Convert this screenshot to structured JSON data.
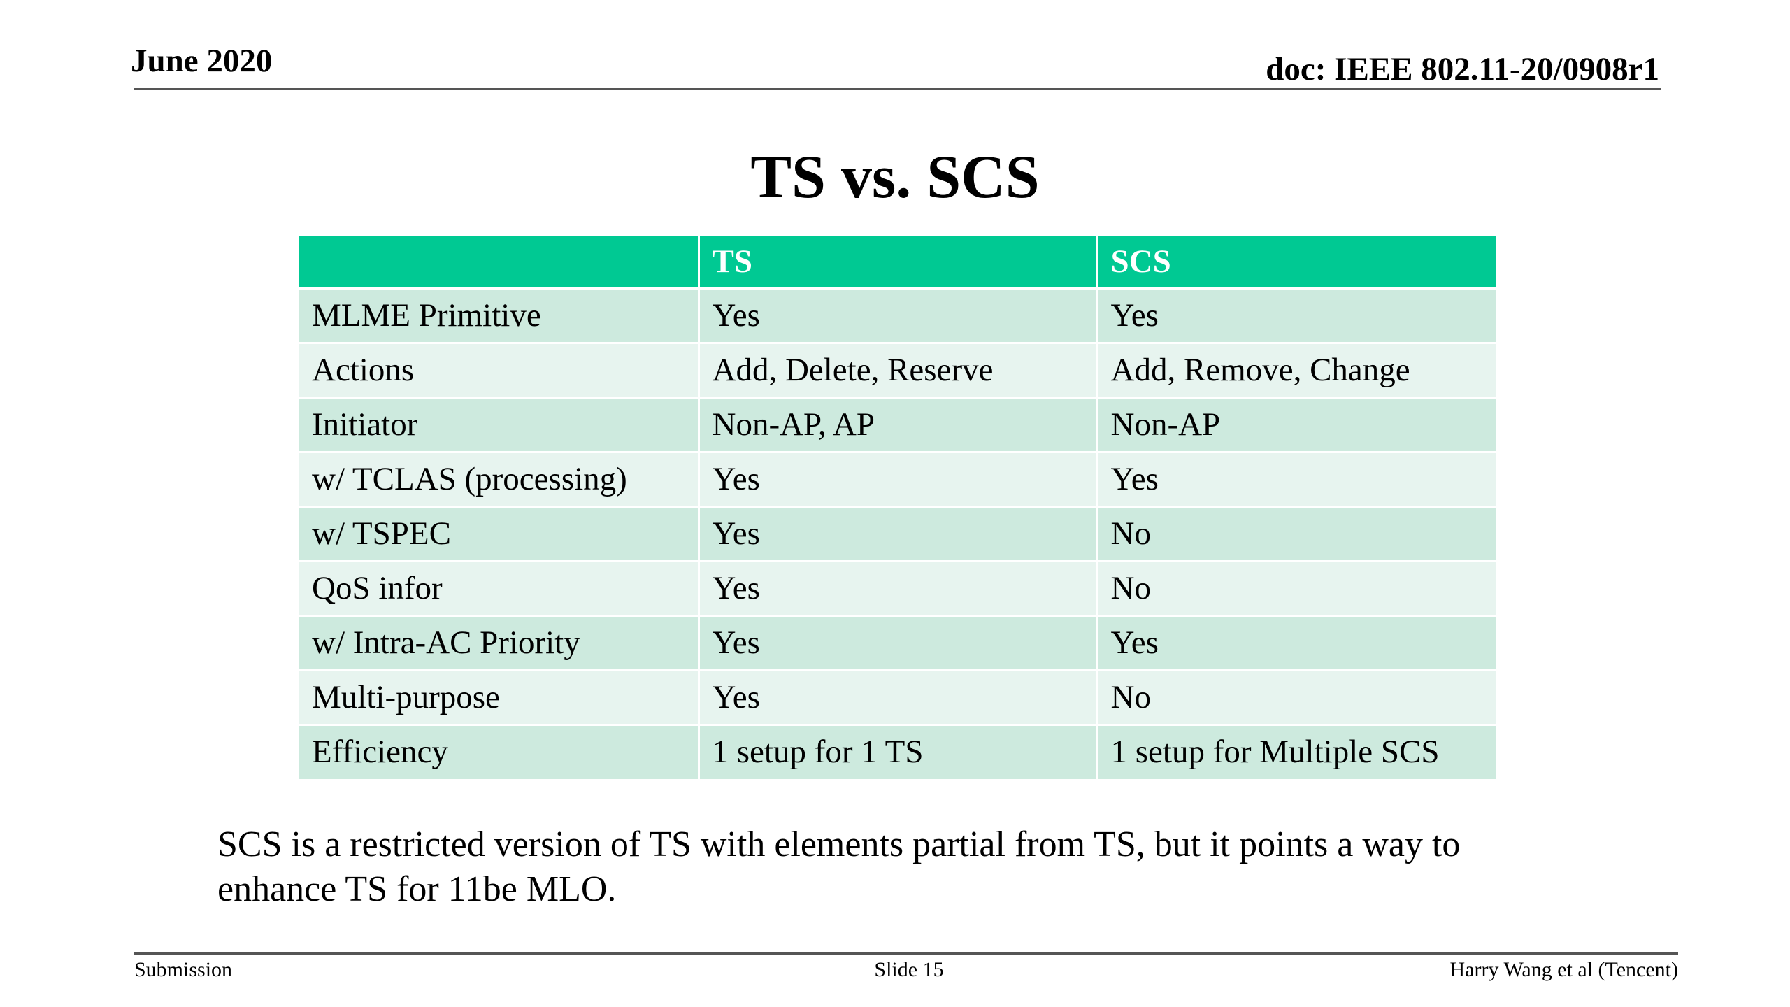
{
  "header": {
    "date": "June 2020",
    "doc_id": "doc: IEEE 802.11-20/0908r1"
  },
  "title": "TS vs. SCS",
  "table": {
    "columns": [
      "",
      "TS",
      "SCS"
    ],
    "rows": [
      [
        "MLME Primitive",
        "Yes",
        "Yes"
      ],
      [
        "Actions",
        "Add, Delete, Reserve",
        "Add, Remove, Change"
      ],
      [
        "Initiator",
        "Non-AP, AP",
        "Non-AP"
      ],
      [
        "w/ TCLAS (processing)",
        "Yes",
        "Yes"
      ],
      [
        "w/ TSPEC",
        "Yes",
        "No"
      ],
      [
        "QoS infor",
        "Yes",
        "No"
      ],
      [
        "w/ Intra-AC Priority",
        "Yes",
        "Yes"
      ],
      [
        "Multi-purpose",
        "Yes",
        "No"
      ],
      [
        "Efficiency",
        "1 setup for 1 TS",
        "1 setup for Multiple SCS"
      ]
    ]
  },
  "summary": "SCS is a restricted version of TS with elements partial from TS, but it points a way to enhance TS for 11be MLO.",
  "footer": {
    "left": "Submission",
    "center": "Slide 15",
    "right": "Harry Wang et al (Tencent)"
  },
  "colors": {
    "header_row": "#00c993",
    "row_dark": "#cdeade",
    "row_light": "#e7f4ef"
  }
}
